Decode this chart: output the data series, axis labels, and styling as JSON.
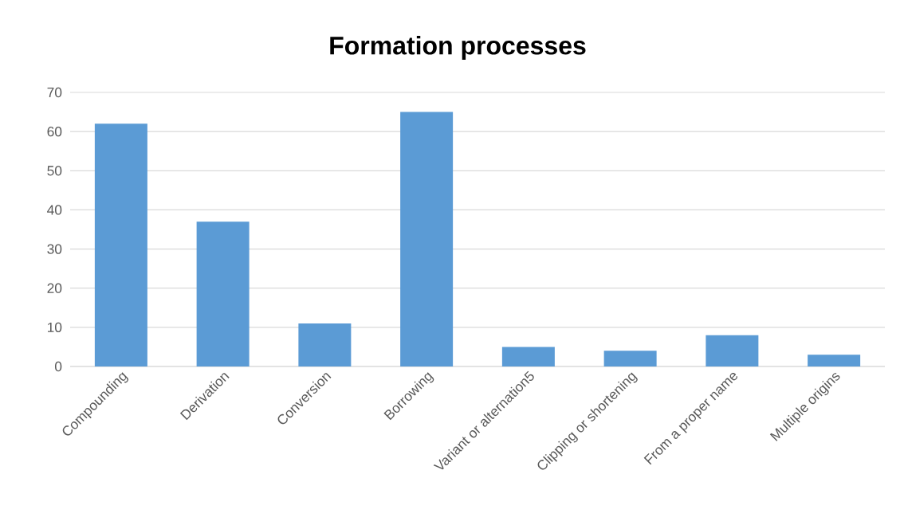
{
  "chart_data": {
    "type": "bar",
    "title": "Formation processes",
    "categories": [
      "Compounding",
      "Derivation",
      "Conversion",
      "Borrowing",
      "Variant or alternation5",
      "Clipping or shortening",
      "From a proper name",
      "Multiple origins"
    ],
    "values": [
      62,
      37,
      11,
      65,
      5,
      4,
      8,
      3
    ],
    "color": "#5b9bd5",
    "ylim": [
      0,
      70
    ],
    "yticks": [
      0,
      10,
      20,
      30,
      40,
      50,
      60,
      70
    ],
    "grid": "y"
  }
}
